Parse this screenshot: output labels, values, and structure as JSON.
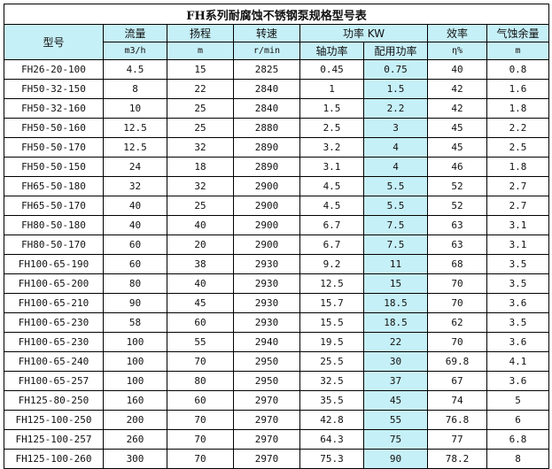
{
  "title": "FH系列耐腐蚀不锈钢泵规格型号表",
  "headers": {
    "model": "型号",
    "flow": "流量",
    "flow_unit": "m3/h",
    "head": "扬程",
    "head_unit": "m",
    "speed": "转速",
    "speed_unit": "r/min",
    "power": "功率 KW",
    "shaft_power": "轴功率",
    "motor_power": "配用功率",
    "efficiency": "效率",
    "efficiency_unit": "η%",
    "npsh": "气蚀余量",
    "npsh_unit": "m"
  },
  "rows": [
    [
      "FH26-20-100",
      "4.5",
      "15",
      "2825",
      "0.45",
      "0.75",
      "40",
      "0.8"
    ],
    [
      "FH50-32-150",
      "8",
      "22",
      "2840",
      "1",
      "1.5",
      "42",
      "1.6"
    ],
    [
      "FH50-32-160",
      "10",
      "25",
      "2840",
      "1.5",
      "2.2",
      "42",
      "1.8"
    ],
    [
      "FH50-50-160",
      "12.5",
      "25",
      "2880",
      "2.5",
      "3",
      "45",
      "2.2"
    ],
    [
      "FH50-50-170",
      "12.5",
      "32",
      "2890",
      "3.2",
      "4",
      "45",
      "2.5"
    ],
    [
      "FH50-50-150",
      "24",
      "18",
      "2890",
      "3.1",
      "4",
      "46",
      "1.8"
    ],
    [
      "FH65-50-180",
      "32",
      "32",
      "2900",
      "4.5",
      "5.5",
      "52",
      "2.7"
    ],
    [
      "FH65-50-170",
      "40",
      "25",
      "2900",
      "4.5",
      "5.5",
      "52",
      "2.7"
    ],
    [
      "FH80-50-180",
      "40",
      "40",
      "2900",
      "6.7",
      "7.5",
      "63",
      "3.1"
    ],
    [
      "FH80-50-170",
      "60",
      "20",
      "2900",
      "6.7",
      "7.5",
      "63",
      "3.1"
    ],
    [
      "FH100-65-190",
      "60",
      "38",
      "2930",
      "9.2",
      "11",
      "68",
      "3.5"
    ],
    [
      "FH100-65-200",
      "80",
      "40",
      "2930",
      "12.5",
      "15",
      "70",
      "3.5"
    ],
    [
      "FH100-65-210",
      "90",
      "45",
      "2930",
      "15.7",
      "18.5",
      "70",
      "3.6"
    ],
    [
      "FH100-65-230",
      "58",
      "60",
      "2930",
      "15.5",
      "18.5",
      "62",
      "3.5"
    ],
    [
      "FH100-65-230",
      "100",
      "55",
      "2940",
      "19.5",
      "22",
      "70",
      "3.6"
    ],
    [
      "FH100-65-240",
      "100",
      "70",
      "2950",
      "25.5",
      "30",
      "69.8",
      "4.1"
    ],
    [
      "FH100-65-257",
      "100",
      "80",
      "2950",
      "32.5",
      "37",
      "67",
      "3.6"
    ],
    [
      "FH125-80-250",
      "160",
      "60",
      "2970",
      "35.5",
      "45",
      "74",
      "5"
    ],
    [
      "FH125-100-250",
      "200",
      "70",
      "2970",
      "42.8",
      "55",
      "76.8",
      "6"
    ],
    [
      "FH125-100-257",
      "260",
      "70",
      "2970",
      "64.3",
      "75",
      "77",
      "6.8"
    ],
    [
      "FH125-100-260",
      "300",
      "70",
      "2970",
      "75.3",
      "90",
      "78.2",
      "8"
    ]
  ]
}
